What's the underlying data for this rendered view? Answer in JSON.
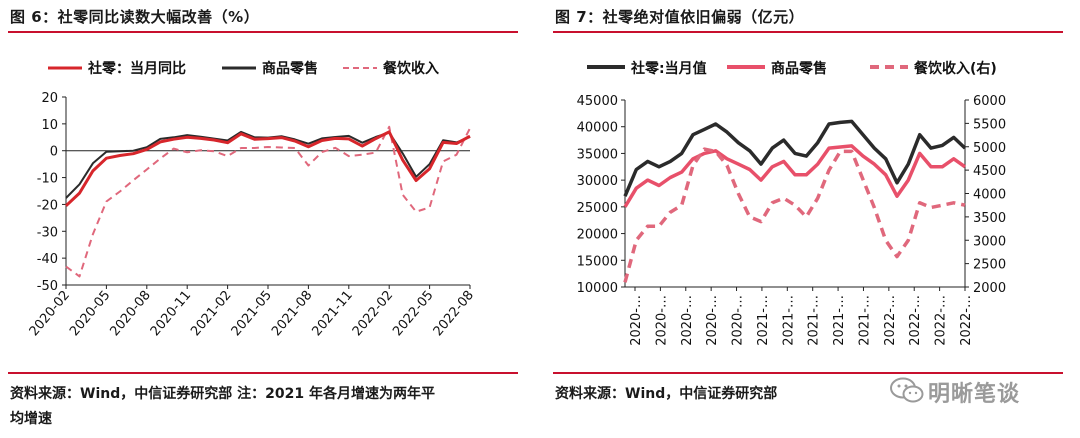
{
  "left": {
    "title": "图 6：社零同比读数大幅改善（%）",
    "source": "资料来源：Wind，中信证券研究部 注：2021 年各月增速为两年平",
    "source_line2": "均增速",
    "chart_data": {
      "type": "line",
      "x": [
        "2020-02",
        "2020-03",
        "2020-04",
        "2020-05",
        "2020-06",
        "2020-07",
        "2020-08",
        "2020-09",
        "2020-10",
        "2020-11",
        "2020-12",
        "2021-01",
        "2021-02",
        "2021-03",
        "2021-04",
        "2021-05",
        "2021-06",
        "2021-07",
        "2021-08",
        "2021-09",
        "2021-10",
        "2021-11",
        "2021-12",
        "2022-01",
        "2022-02",
        "2022-03",
        "2022-04",
        "2022-05",
        "2022-06",
        "2022-07",
        "2022-08"
      ],
      "xticks": [
        "2020-02",
        "2020-05",
        "2020-08",
        "2020-11",
        "2021-02",
        "2021-05",
        "2021-08",
        "2021-11",
        "2022-02",
        "2022-05",
        "2022-08"
      ],
      "yticks": [
        "20",
        "10",
        "0",
        "-10",
        "-20",
        "-30",
        "-40",
        "-50"
      ],
      "ylim": [
        -50,
        20
      ],
      "series": [
        {
          "name": "社零：当月同比",
          "color": "#d7262b",
          "dash": false,
          "values": [
            -20.5,
            -15.8,
            -7.5,
            -2.8,
            -1.8,
            -1.1,
            0.5,
            3.3,
            4.3,
            5,
            4.6,
            4,
            3,
            6.3,
            4.3,
            4.5,
            4.9,
            3.6,
            1.5,
            3.8,
            4.6,
            4.4,
            1.7,
            4.5,
            7,
            -3.5,
            -11.1,
            -6.7,
            3.1,
            2.7,
            5.4
          ]
        },
        {
          "name": "商品零售",
          "color": "#2b2b2b",
          "dash": false,
          "values": [
            -17.6,
            -12.5,
            -4.7,
            -0.4,
            -0.2,
            0,
            1.3,
            4.4,
            5,
            5.8,
            5.2,
            4.5,
            3.8,
            7,
            5,
            4.9,
            5.4,
            4.2,
            2.6,
            4.6,
            5.1,
            5.5,
            3,
            5.1,
            6.8,
            -1,
            -9.7,
            -5,
            3.9,
            3.1,
            5.1
          ]
        },
        {
          "name": "餐饮收入",
          "color": "#e0687c",
          "dash": true,
          "values": [
            -43.1,
            -46.8,
            -31.1,
            -18.9,
            -15.2,
            -11,
            -7,
            -2.9,
            0.8,
            -0.6,
            0.2,
            -0.2,
            -2,
            1,
            1,
            1.4,
            1.2,
            1,
            -5.5,
            -0.5,
            1.1,
            -2,
            -1.5,
            -0.7,
            8.9,
            -16.4,
            -22.7,
            -21.1,
            -4,
            -1.5,
            8.4
          ]
        }
      ]
    }
  },
  "right": {
    "title": "图 7：社零绝对值依旧偏弱（亿元）",
    "source": "资料来源：Wind，中信证券研究部",
    "chart_data": {
      "type": "line",
      "x": [
        "2020-02",
        "2020-03",
        "2020-04",
        "2020-05",
        "2020-06",
        "2020-07",
        "2020-08",
        "2020-09",
        "2020-10",
        "2020-11",
        "2020-12",
        "2021-01",
        "2021-02",
        "2021-03",
        "2021-04",
        "2021-05",
        "2021-06",
        "2021-07",
        "2021-08",
        "2021-09",
        "2021-10",
        "2021-11",
        "2021-12",
        "2022-01",
        "2022-02",
        "2022-03",
        "2022-04",
        "2022-05",
        "2022-06",
        "2022-07",
        "2022-08"
      ],
      "xticks": [
        "2020-…",
        "2020-…",
        "2020-…",
        "2020-…",
        "2020-…",
        "2021-…",
        "2021-…",
        "2021-…",
        "2021-…",
        "2021-…",
        "2022-…",
        "2022-…",
        "2022-…",
        "2022-…"
      ],
      "yticks_left": [
        "45000",
        "40000",
        "35000",
        "30000",
        "25000",
        "20000",
        "15000",
        "10000"
      ],
      "yticks_right": [
        "6000",
        "5500",
        "5000",
        "4500",
        "4000",
        "3500",
        "3000",
        "2500",
        "2000"
      ],
      "ylim_left": [
        10000,
        45000
      ],
      "ylim_right": [
        2000,
        6000
      ],
      "series": [
        {
          "name": "社零:当月值",
          "color": "#2b2b2b",
          "dash": false,
          "axis": "left",
          "values": [
            27000,
            32000,
            33500,
            32500,
            33500,
            35000,
            38500,
            39500,
            40500,
            39000,
            37000,
            35500,
            33000,
            36000,
            37500,
            35000,
            34500,
            37000,
            40500,
            40800,
            41000,
            38500,
            36000,
            34000,
            29500,
            33000,
            38500,
            36000,
            36500,
            38000,
            36000
          ]
        },
        {
          "name": "商品零售",
          "color": "#e8506a",
          "dash": false,
          "axis": "left",
          "values": [
            25000,
            28500,
            30000,
            29000,
            30500,
            31500,
            34000,
            35000,
            35500,
            34000,
            33000,
            32000,
            30000,
            32500,
            33500,
            31000,
            31000,
            33000,
            36000,
            36200,
            36400,
            34500,
            33000,
            31000,
            27000,
            30000,
            35000,
            32500,
            32500,
            34000,
            32500
          ]
        },
        {
          "name": "餐饮收入(右)",
          "color": "#e0687c",
          "dash": true,
          "axis": "right",
          "values": [
            2100,
            3000,
            3300,
            3300,
            3600,
            3750,
            4600,
            4950,
            4900,
            4600,
            4000,
            3500,
            3400,
            3800,
            3900,
            3750,
            3500,
            3900,
            4500,
            4900,
            4900,
            4300,
            3700,
            3000,
            2650,
            3000,
            3800,
            3700,
            3750,
            3800,
            3750
          ]
        }
      ]
    }
  },
  "watermark": {
    "text": "明晰笔谈",
    "icon": "wechat-icon"
  }
}
